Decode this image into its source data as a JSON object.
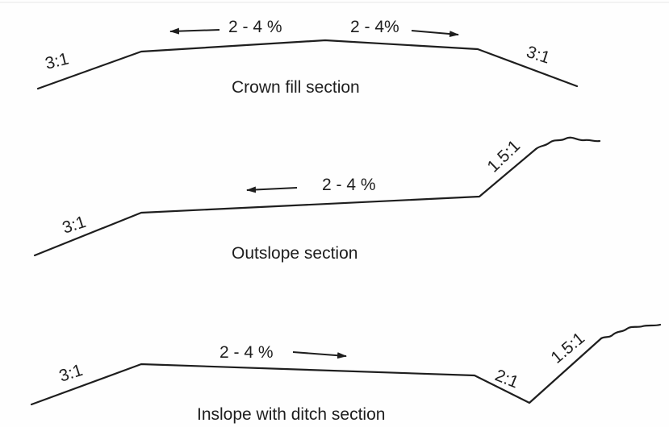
{
  "diagram": {
    "sections": [
      {
        "caption": "Crown fill section",
        "left_slope": "3:1",
        "right_slope": "3:1",
        "grade_left": "2 - 4 %",
        "grade_right": "2 - 4%"
      },
      {
        "caption": "Outslope section",
        "left_slope": "3:1",
        "right_slope": "1.5:1",
        "grade": "2 - 4 %"
      },
      {
        "caption": "Inslope with ditch section",
        "left_slope": "3:1",
        "ditch_slope": "2:1",
        "right_slope": "1.5:1",
        "grade": "2 - 4 %"
      }
    ]
  }
}
